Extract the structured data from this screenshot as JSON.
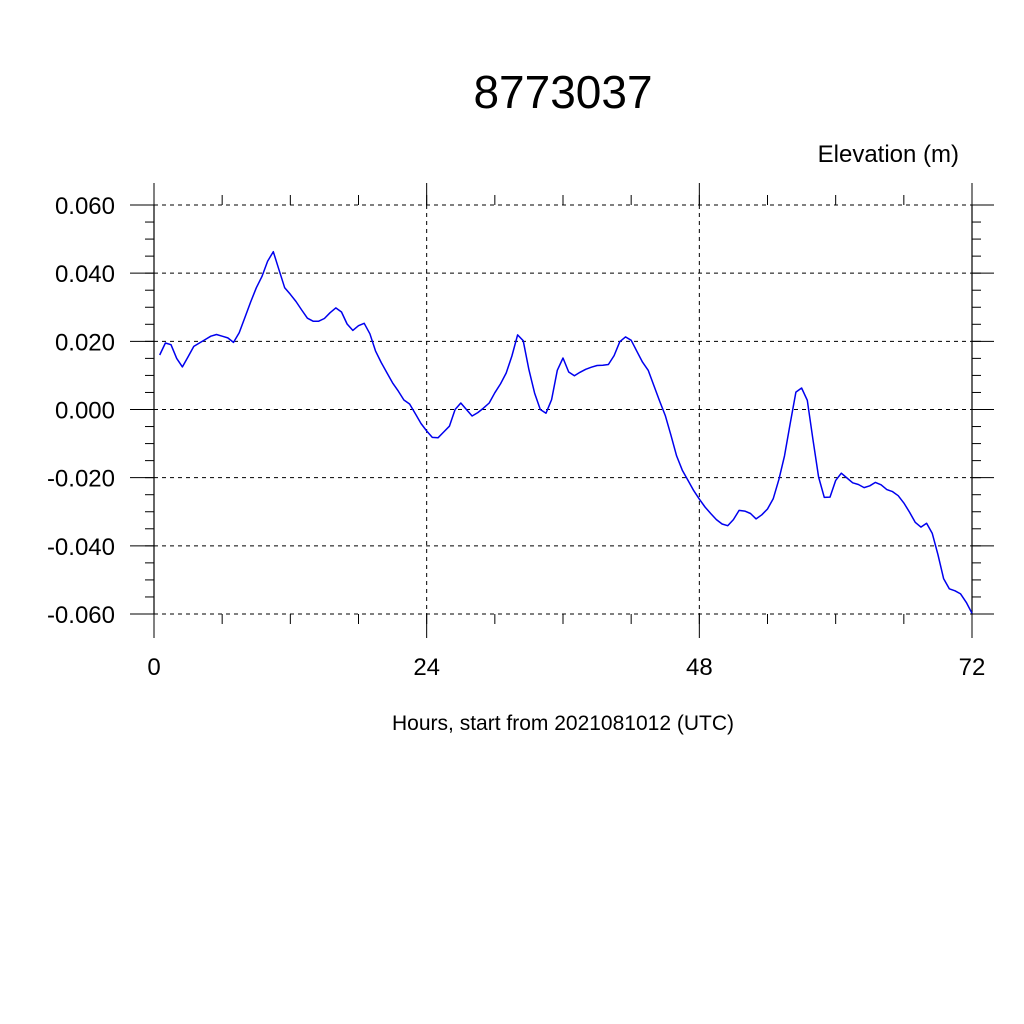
{
  "chart_data": {
    "type": "line",
    "title": "8773037",
    "ylabel": "Elevation (m)",
    "xlabel": "Hours, start from 2021081012 (UTC)",
    "xlim": [
      0,
      72
    ],
    "ylim": [
      -0.06,
      0.06
    ],
    "x_ticks": [
      0,
      24,
      48,
      72
    ],
    "x_tick_labels": [
      "0",
      "24",
      "48",
      "72"
    ],
    "y_ticks": [
      0.06,
      0.04,
      0.02,
      0.0,
      -0.02,
      -0.04,
      -0.06
    ],
    "y_tick_labels": [
      "0.060",
      "0.040",
      "0.020",
      "0.000",
      "-0.020",
      "-0.040",
      "-0.060"
    ],
    "grid": true,
    "colors": {
      "series": "#0000ee",
      "grid": "#000000"
    },
    "series": [
      {
        "color": "#0000ee",
        "x": [
          0.5,
          1,
          1.5,
          2,
          2.5,
          3,
          3.5,
          4,
          4.5,
          5,
          5.5,
          6,
          6.5,
          7,
          7.5,
          8,
          8.5,
          9,
          9.5,
          10,
          10.5,
          11,
          11.5,
          12,
          12.5,
          13,
          13.5,
          14,
          14.5,
          15,
          15.5,
          16,
          16.5,
          17,
          17.5,
          18,
          18.5,
          19,
          19.5,
          20,
          20.5,
          21,
          21.5,
          22,
          22.5,
          23,
          23.5,
          24,
          24.5,
          25,
          25.5,
          26,
          26.5,
          27,
          27.5,
          28,
          28.5,
          29,
          29.5,
          30,
          30.5,
          31,
          31.5,
          32,
          32.5,
          33,
          33.5,
          34,
          34.5,
          35,
          35.5,
          36,
          36.5,
          37,
          37.5,
          38,
          38.5,
          39,
          39.5,
          40,
          40.5,
          41,
          41.5,
          42,
          42.5,
          43,
          43.5,
          44,
          44.5,
          45,
          45.5,
          46,
          46.5,
          47,
          47.5,
          48,
          48.5,
          49,
          49.5,
          50,
          50.5,
          51,
          51.5,
          52,
          52.5,
          53,
          53.5,
          54,
          54.5,
          55,
          55.5,
          56,
          56.5,
          57,
          57.5,
          58,
          58.5,
          59,
          59.5,
          60,
          60.5,
          61,
          61.5,
          62,
          62.5,
          63,
          63.5,
          64,
          64.5,
          65,
          65.5,
          66,
          66.5,
          67,
          67.5,
          68,
          68.5,
          69,
          69.5,
          70,
          70.5,
          71,
          71.5,
          72
        ],
        "y": [
          0.016,
          0.0195,
          0.019,
          0.015,
          0.0125,
          0.0155,
          0.0185,
          0.0195,
          0.0205,
          0.0215,
          0.022,
          0.0215,
          0.021,
          0.0197,
          0.0225,
          0.027,
          0.0315,
          0.0357,
          0.039,
          0.0435,
          0.0463,
          0.041,
          0.0357,
          0.0338,
          0.0317,
          0.0292,
          0.0268,
          0.0259,
          0.0259,
          0.0267,
          0.0284,
          0.0298,
          0.0286,
          0.0251,
          0.0232,
          0.0246,
          0.0253,
          0.0222,
          0.0172,
          0.0138,
          0.0108,
          0.0078,
          0.0054,
          0.0028,
          0.0016,
          -0.0012,
          -0.0041,
          -0.0063,
          -0.0082,
          -0.0083,
          -0.0066,
          -0.0049,
          0.0,
          0.0019,
          0.0,
          -0.0019,
          -0.0009,
          0.0004,
          0.0019,
          0.0049,
          0.0075,
          0.0107,
          0.0157,
          0.0219,
          0.0202,
          0.0117,
          0.0048,
          0.0,
          -0.0011,
          0.0029,
          0.0115,
          0.0151,
          0.011,
          0.0099,
          0.0109,
          0.0118,
          0.0124,
          0.0129,
          0.013,
          0.0132,
          0.0158,
          0.0199,
          0.0213,
          0.0203,
          0.0171,
          0.0139,
          0.0115,
          0.007,
          0.0025,
          -0.0018,
          -0.0075,
          -0.0136,
          -0.0178,
          -0.0208,
          -0.0238,
          -0.0263,
          -0.0286,
          -0.0305,
          -0.0323,
          -0.0336,
          -0.0341,
          -0.0323,
          -0.0296,
          -0.0298,
          -0.0305,
          -0.0321,
          -0.0309,
          -0.0292,
          -0.0262,
          -0.0205,
          -0.0136,
          -0.0041,
          0.0051,
          0.0063,
          0.0027,
          -0.0087,
          -0.0198,
          -0.0258,
          -0.0257,
          -0.0208,
          -0.0187,
          -0.0201,
          -0.0215,
          -0.022,
          -0.0229,
          -0.0224,
          -0.0214,
          -0.0221,
          -0.0235,
          -0.0241,
          -0.0253,
          -0.0274,
          -0.0301,
          -0.0331,
          -0.0345,
          -0.0334,
          -0.0363,
          -0.0425,
          -0.0496,
          -0.0526,
          -0.0532,
          -0.0541,
          -0.0566,
          -0.0598
        ]
      }
    ]
  }
}
